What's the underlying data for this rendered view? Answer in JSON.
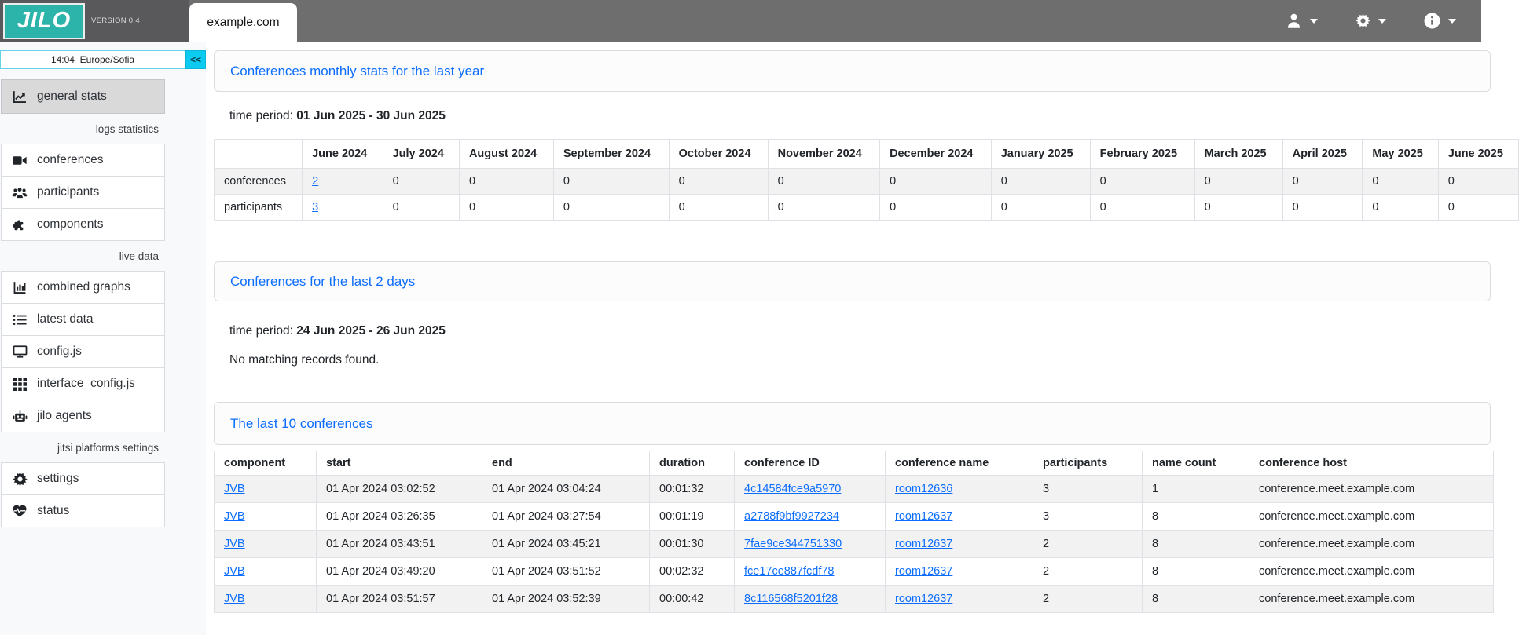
{
  "colors": {
    "brand_teal": "#2cb4aa",
    "link_blue": "#0d6efd",
    "cyan": "#0dcaf0",
    "navbar_gray": "#6e6e6e"
  },
  "navbar": {
    "brand": "JILO",
    "version": "VERSION 0.4",
    "tab": "example.com",
    "menus": [
      {
        "name": "user-menu",
        "icon": "user-icon"
      },
      {
        "name": "settings-menu",
        "icon": "gear-icon"
      },
      {
        "name": "info-menu",
        "icon": "info-icon"
      }
    ]
  },
  "sidebar": {
    "time": "14:04  Europe/Sofia",
    "collapse_label": "<<",
    "items": [
      {
        "type": "item",
        "icon": "chart-line-icon",
        "label": "general stats",
        "active": true
      },
      {
        "type": "section",
        "label": "logs statistics"
      },
      {
        "type": "item",
        "icon": "video-camera-icon",
        "label": "conferences"
      },
      {
        "type": "item",
        "icon": "users-icon",
        "label": "participants"
      },
      {
        "type": "item",
        "icon": "puzzle-icon",
        "label": "components"
      },
      {
        "type": "section",
        "label": "live data"
      },
      {
        "type": "item",
        "icon": "chart-bar-icon",
        "label": "combined graphs"
      },
      {
        "type": "item",
        "icon": "list-icon",
        "label": "latest data"
      },
      {
        "type": "item",
        "icon": "display-icon",
        "label": "config.js"
      },
      {
        "type": "item",
        "icon": "grid-icon",
        "label": "interface_config.js"
      },
      {
        "type": "item",
        "icon": "robot-icon",
        "label": "jilo agents"
      },
      {
        "type": "section",
        "label": "jitsi platforms settings"
      },
      {
        "type": "item",
        "icon": "gear-icon",
        "label": "settings"
      },
      {
        "type": "item",
        "icon": "heart-pulse-icon",
        "label": "status"
      }
    ]
  },
  "main": {
    "card1": {
      "title": "Conferences monthly stats for the last year",
      "time_period_label": "time period:",
      "time_period": "01 Jun 2025 - 30 Jun 2025"
    },
    "monthly_table": {
      "headers": [
        "",
        "June 2024",
        "July 2024",
        "August 2024",
        "September 2024",
        "October 2024",
        "November 2024",
        "December 2024",
        "January 2025",
        "February 2025",
        "March 2025",
        "April 2025",
        "May 2025",
        "June 2025"
      ],
      "rows": [
        [
          "conferences",
          {
            "t": "2",
            "link": true
          },
          "0",
          "0",
          "0",
          "0",
          "0",
          "0",
          "0",
          "0",
          "0",
          "0",
          "0",
          "0"
        ],
        [
          "participants",
          {
            "t": "3",
            "link": true
          },
          "0",
          "0",
          "0",
          "0",
          "0",
          "0",
          "0",
          "0",
          "0",
          "0",
          "0",
          "0"
        ]
      ]
    },
    "card2": {
      "title": "Conferences for the last 2 days",
      "time_period_label": "time period:",
      "time_period": "24 Jun 2025 - 26 Jun 2025",
      "no_records": "No matching records found."
    },
    "card3": {
      "title": "The last 10 conferences"
    },
    "last10_table": {
      "headers": [
        "component",
        "start",
        "end",
        "duration",
        "conference ID",
        "conference name",
        "participants",
        "name count",
        "conference host"
      ],
      "rows": [
        [
          {
            "t": "JVB",
            "link": true
          },
          "01 Apr 2024 03:02:52",
          "01 Apr 2024 03:04:24",
          "00:01:32",
          {
            "t": "4c14584fce9a5970",
            "link": true
          },
          {
            "t": "room12636",
            "link": true
          },
          "3",
          "1",
          "conference.meet.example.com"
        ],
        [
          {
            "t": "JVB",
            "link": true
          },
          "01 Apr 2024 03:26:35",
          "01 Apr 2024 03:27:54",
          "00:01:19",
          {
            "t": "a2788f9bf9927234",
            "link": true
          },
          {
            "t": "room12637",
            "link": true
          },
          "3",
          "8",
          "conference.meet.example.com"
        ],
        [
          {
            "t": "JVB",
            "link": true
          },
          "01 Apr 2024 03:43:51",
          "01 Apr 2024 03:45:21",
          "00:01:30",
          {
            "t": "7fae9ce344751330",
            "link": true
          },
          {
            "t": "room12637",
            "link": true
          },
          "2",
          "8",
          "conference.meet.example.com"
        ],
        [
          {
            "t": "JVB",
            "link": true
          },
          "01 Apr 2024 03:49:20",
          "01 Apr 2024 03:51:52",
          "00:02:32",
          {
            "t": "fce17ce887fcdf78",
            "link": true
          },
          {
            "t": "room12637",
            "link": true
          },
          "2",
          "8",
          "conference.meet.example.com"
        ],
        [
          {
            "t": "JVB",
            "link": true
          },
          "01 Apr 2024 03:51:57",
          "01 Apr 2024 03:52:39",
          "00:00:42",
          {
            "t": "8c116568f5201f28",
            "link": true
          },
          {
            "t": "room12637",
            "link": true
          },
          "2",
          "8",
          "conference.meet.example.com"
        ]
      ]
    }
  }
}
